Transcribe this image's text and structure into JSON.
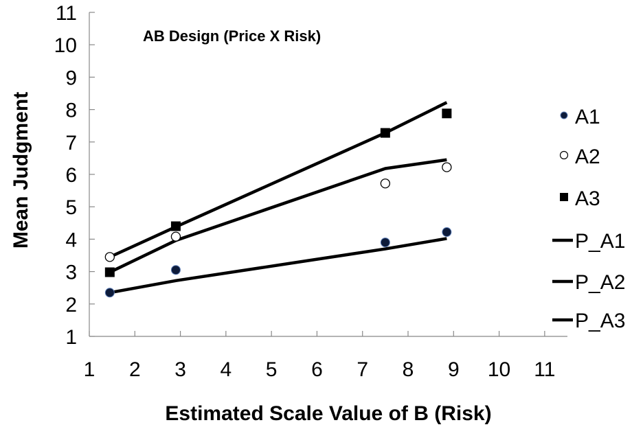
{
  "chart_data": {
    "type": "scatter",
    "title": "AB Design (Price X Risk)",
    "xlabel": "Estimated Scale Value of B (Risk)",
    "ylabel": "Mean Judgment",
    "xlim": [
      1,
      11.5
    ],
    "ylim": [
      1,
      11
    ],
    "xticks": [
      1,
      2,
      3,
      4,
      5,
      6,
      7,
      8,
      9,
      10,
      11
    ],
    "yticks": [
      1,
      2,
      3,
      4,
      5,
      6,
      7,
      8,
      9,
      10,
      11
    ],
    "grid": false,
    "legend_position": "right",
    "series": [
      {
        "name": "A1",
        "kind": "points",
        "marker": "filled-circle",
        "color": "#0d1b3a",
        "x": [
          1.45,
          2.9,
          7.5,
          8.85
        ],
        "y": [
          2.35,
          3.05,
          3.9,
          4.22
        ]
      },
      {
        "name": "A2",
        "kind": "points",
        "marker": "open-circle",
        "color": "#000000",
        "x": [
          1.45,
          2.9,
          7.5,
          8.85
        ],
        "y": [
          3.45,
          4.08,
          5.72,
          6.22
        ]
      },
      {
        "name": "A3",
        "kind": "points",
        "marker": "filled-square",
        "color": "#000000",
        "x": [
          1.45,
          2.9,
          7.5,
          8.85
        ],
        "y": [
          2.98,
          4.4,
          7.28,
          7.88
        ]
      },
      {
        "name": "P_A1",
        "kind": "line",
        "color": "#000000",
        "x": [
          1.45,
          2.9,
          7.5,
          8.85
        ],
        "y": [
          2.35,
          2.72,
          3.7,
          4.02
        ]
      },
      {
        "name": "P_A2",
        "kind": "line",
        "color": "#000000",
        "x": [
          1.45,
          2.9,
          7.5,
          8.85
        ],
        "y": [
          2.98,
          3.96,
          6.18,
          6.45
        ]
      },
      {
        "name": "P_A3",
        "kind": "line",
        "color": "#000000",
        "x": [
          1.45,
          2.9,
          7.5,
          8.85
        ],
        "y": [
          3.45,
          4.38,
          7.28,
          8.22
        ]
      }
    ]
  }
}
